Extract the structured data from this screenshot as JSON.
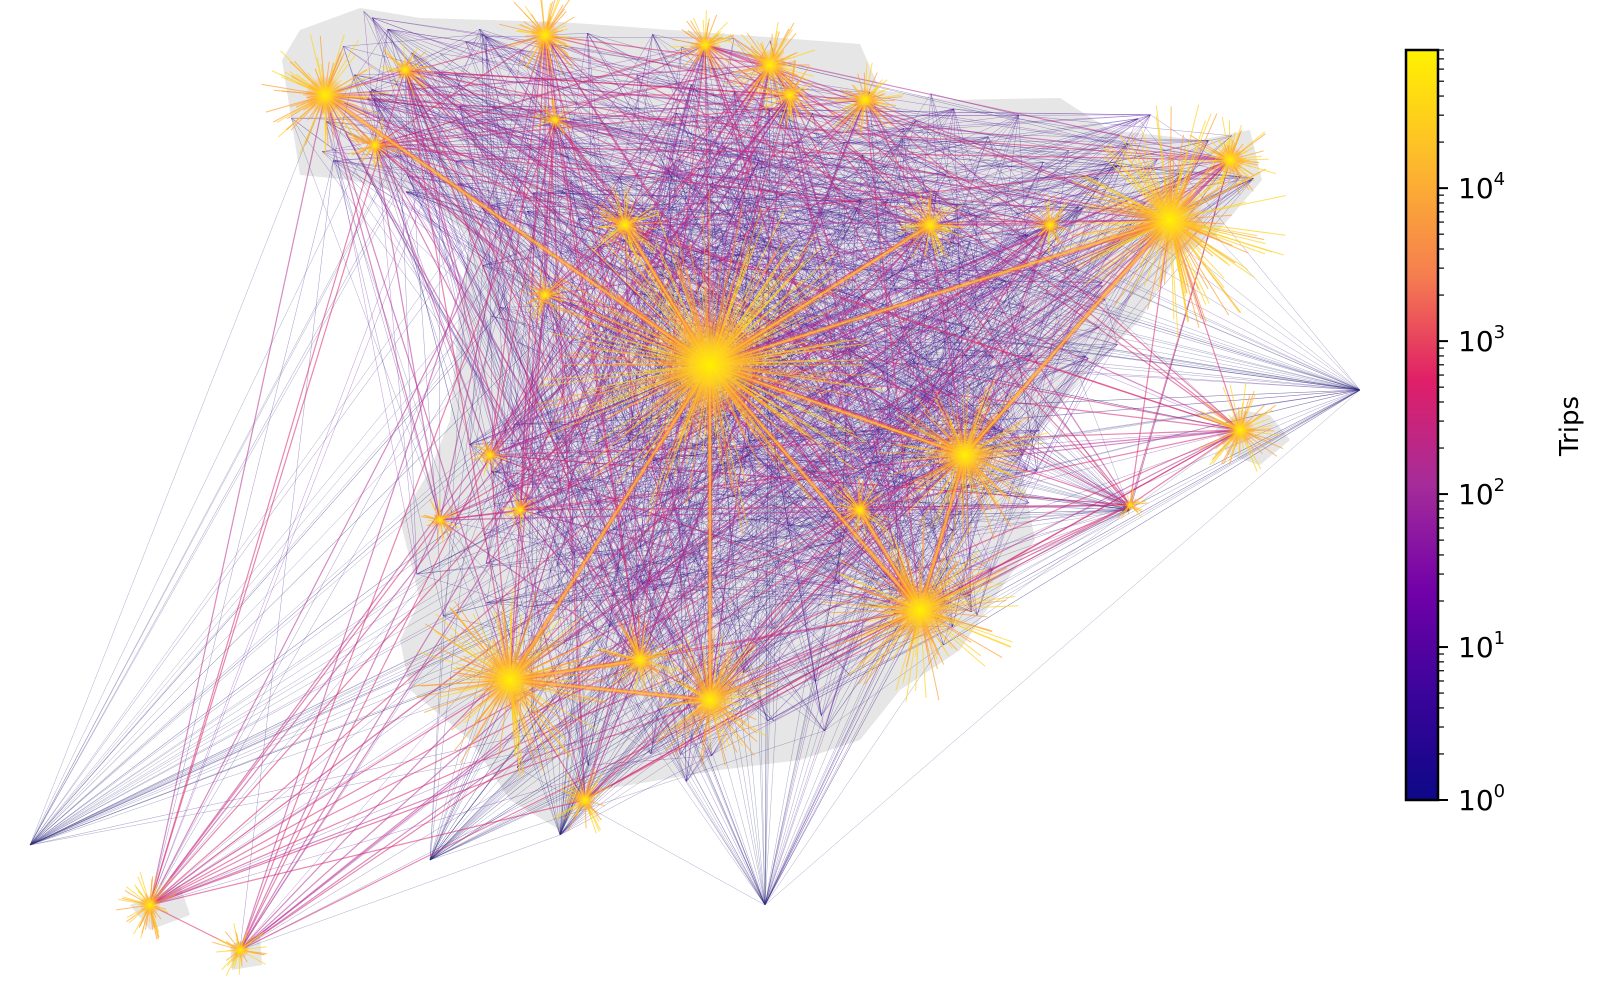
{
  "figure": {
    "type": "origin-destination trip flow map",
    "background": "#ffffff",
    "landmass_color": "#e6e6e6"
  },
  "colorbar": {
    "label": "Trips",
    "scale": "log",
    "colormap": "plasma",
    "range": [
      1,
      80000
    ],
    "ticks": [
      {
        "base": "10",
        "exp": "0"
      },
      {
        "base": "10",
        "exp": "1"
      },
      {
        "base": "10",
        "exp": "2"
      },
      {
        "base": "10",
        "exp": "3"
      },
      {
        "base": "10",
        "exp": "4"
      }
    ],
    "stops": [
      "#0d0887",
      "#5302a3",
      "#8b0aa5",
      "#b83289",
      "#db5c68",
      "#f48849",
      "#febd2a",
      "#fff200"
    ]
  }
}
